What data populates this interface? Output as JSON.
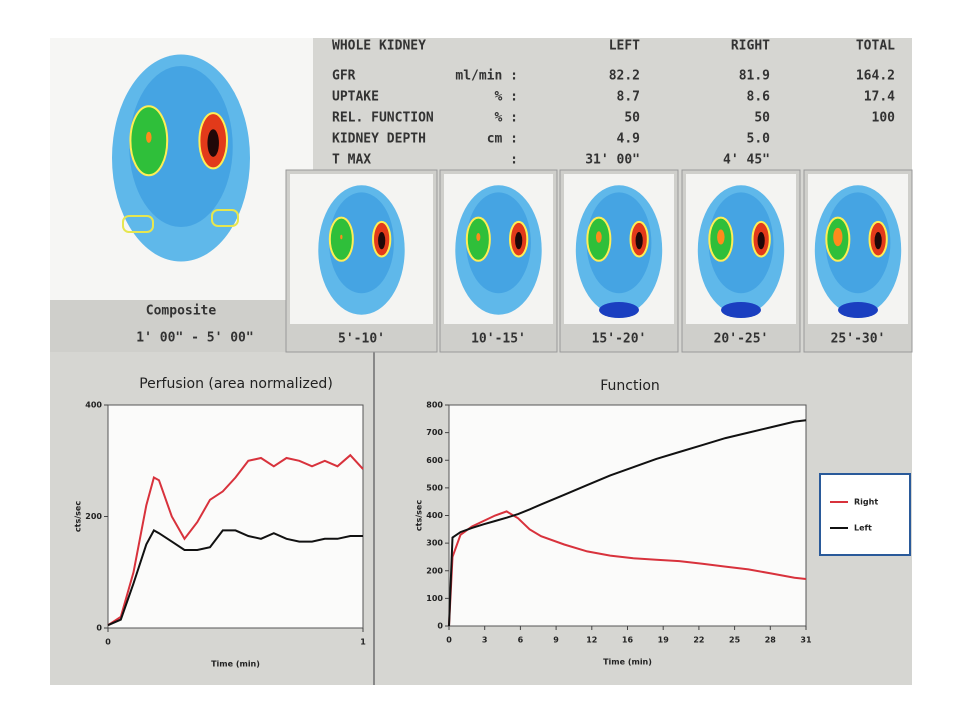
{
  "table": {
    "header": [
      "WHOLE KIDNEY",
      "LEFT",
      "RIGHT",
      "TOTAL"
    ],
    "rows": [
      [
        "GFR",
        "ml/min :",
        "82.2",
        "81.9",
        "164.2"
      ],
      [
        "UPTAKE",
        "% :",
        "8.7",
        "8.6",
        "17.4"
      ],
      [
        "REL. FUNCTION",
        "% :",
        "50",
        "50",
        "100"
      ],
      [
        "KIDNEY DEPTH",
        "cm :",
        "4.9",
        "5.0"
      ],
      [
        "T MAX",
        ":",
        "31' 00\"",
        "4' 45\""
      ]
    ]
  },
  "composite": {
    "label": "Composite",
    "time": "1' 00\" - 5' 00\""
  },
  "frames": [
    {
      "label": "5'-10'"
    },
    {
      "label": "10'-15'"
    },
    {
      "label": "15'-20'"
    },
    {
      "label": "20'-25'"
    },
    {
      "label": "25'-30'"
    }
  ],
  "chart_data": [
    {
      "type": "line",
      "title": "Perfusion (area normalized)",
      "xlabel": "Time (min)",
      "ylabel": "cts/sec",
      "x": [
        0,
        0.05,
        0.1,
        0.15,
        0.18,
        0.2,
        0.25,
        0.3,
        0.35,
        0.4,
        0.45,
        0.5,
        0.55,
        0.6,
        0.65,
        0.7,
        0.75,
        0.8,
        0.85,
        0.9,
        0.95,
        1
      ],
      "series": [
        {
          "color": "#d8323c",
          "values": [
            5,
            20,
            100,
            220,
            270,
            265,
            200,
            160,
            190,
            230,
            245,
            270,
            300,
            305,
            290,
            305,
            300,
            290,
            300,
            290,
            310,
            285
          ]
        },
        {
          "color": "#111111",
          "values": [
            5,
            15,
            80,
            150,
            175,
            170,
            155,
            140,
            140,
            145,
            175,
            175,
            165,
            160,
            170,
            160,
            155,
            155,
            160,
            160,
            165,
            165
          ]
        }
      ],
      "xlim": [
        0,
        1
      ],
      "ylim": [
        0,
        400
      ],
      "xticks": [
        0,
        1
      ],
      "yticks": [
        0,
        200,
        400
      ]
    },
    {
      "type": "line",
      "title": "Function",
      "xlabel": "Time (min)",
      "ylabel": "cts/sec",
      "x": [
        0,
        0.3,
        1,
        2,
        3,
        4,
        5,
        6,
        7,
        8,
        10,
        12,
        14,
        16,
        18,
        20,
        22,
        24,
        26,
        28,
        30,
        31
      ],
      "series": [
        {
          "name": "Right",
          "color": "#d8323c",
          "values": [
            0,
            250,
            330,
            360,
            380,
            400,
            415,
            390,
            350,
            325,
            295,
            270,
            255,
            245,
            240,
            235,
            225,
            215,
            205,
            190,
            175,
            170
          ]
        },
        {
          "name": "Left",
          "color": "#111111",
          "values": [
            0,
            320,
            340,
            355,
            368,
            380,
            392,
            405,
            422,
            440,
            475,
            510,
            545,
            575,
            605,
            630,
            655,
            680,
            700,
            720,
            740,
            745
          ]
        }
      ],
      "xlim": [
        0,
        31
      ],
      "ylim": [
        0,
        800
      ],
      "xticks": [
        0,
        {
          "value": 3.1,
          "label": "3"
        },
        {
          "value": 6.2,
          "label": "6"
        },
        {
          "value": 9.3,
          "label": "9"
        },
        {
          "value": 12.4,
          "label": "12"
        },
        {
          "value": 15.5,
          "label": "16"
        },
        {
          "value": 18.6,
          "label": "19"
        },
        {
          "value": 21.7,
          "label": "22"
        },
        {
          "value": 24.8,
          "label": "25"
        },
        {
          "value": 27.9,
          "label": "28"
        },
        31
      ],
      "yticks": [
        0,
        100,
        200,
        300,
        400,
        500,
        600,
        700,
        800
      ],
      "legend": "right"
    }
  ]
}
